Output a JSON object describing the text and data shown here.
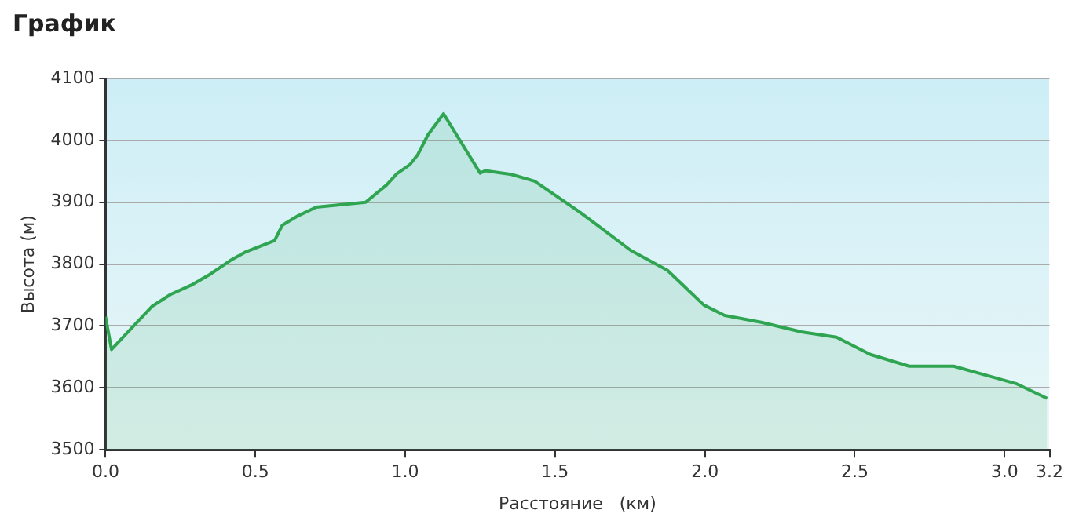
{
  "chart_data": {
    "type": "area",
    "title": "График",
    "xlabel": "Расстояние   (км)",
    "ylabel": "Высота (м)",
    "xlim": [
      0,
      3.15
    ],
    "xticks": [
      {
        "value": 0,
        "label": "0.0"
      },
      0.5,
      {
        "value": 1,
        "label": "1.0"
      },
      1.5,
      {
        "value": 2,
        "label": "2.0"
      },
      2.5,
      {
        "value": 3,
        "label": "3.0"
      },
      {
        "value": 3.15,
        "label": "3.2"
      }
    ],
    "ylim": [
      3500,
      4100
    ],
    "yticks": [
      3500,
      3600,
      3700,
      3800,
      3900,
      4000,
      4100
    ],
    "grid": "y",
    "legend": false,
    "marker": "none",
    "series": [
      {
        "color": "#2fa552",
        "x": [
          0,
          0.02,
          0.156,
          0.217,
          0.286,
          0.347,
          0.417,
          0.469,
          0.564,
          0.59,
          0.642,
          0.703,
          0.868,
          0.938,
          0.972,
          1.016,
          1.042,
          1.076,
          1.128,
          1.25,
          1.267,
          1.354,
          1.432,
          1.58,
          1.753,
          1.875,
          1.996,
          2.066,
          2.188,
          2.326,
          2.439,
          2.552,
          2.682,
          2.83,
          3.038,
          3.142
        ],
        "values": [
          3715,
          3662,
          3732,
          3751,
          3766,
          3783,
          3806,
          3820,
          3838,
          3863,
          3878,
          3892,
          3900,
          3928,
          3946,
          3961,
          3977,
          4009,
          4043,
          3947,
          3951,
          3945,
          3934,
          3885,
          3822,
          3790,
          3734,
          3717,
          3706,
          3690,
          3682,
          3654,
          3635,
          3635,
          3607,
          3583
        ]
      }
    ]
  }
}
